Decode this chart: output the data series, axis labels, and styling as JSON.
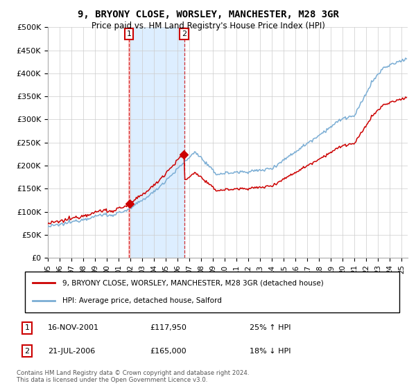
{
  "title": "9, BRYONY CLOSE, WORSLEY, MANCHESTER, M28 3GR",
  "subtitle": "Price paid vs. HM Land Registry's House Price Index (HPI)",
  "legend_line1": "9, BRYONY CLOSE, WORSLEY, MANCHESTER, M28 3GR (detached house)",
  "legend_line2": "HPI: Average price, detached house, Salford",
  "purchase1_date": "16-NOV-2001",
  "purchase1_price": "£117,950",
  "purchase1_hpi": "25% ↑ HPI",
  "purchase1_year": 2001.88,
  "purchase1_value": 117950,
  "purchase2_date": "21-JUL-2006",
  "purchase2_price": "£165,000",
  "purchase2_hpi": "18% ↓ HPI",
  "purchase2_year": 2006.55,
  "purchase2_value": 165000,
  "ylim": [
    0,
    500000
  ],
  "xlim_start": 1995.0,
  "xlim_end": 2025.5,
  "hpi_color": "#7aadd4",
  "price_color": "#cc0000",
  "shade_color": "#ddeeff",
  "footnote": "Contains HM Land Registry data © Crown copyright and database right 2024.\nThis data is licensed under the Open Government Licence v3.0.",
  "background_color": "#ffffff",
  "grid_color": "#cccccc"
}
